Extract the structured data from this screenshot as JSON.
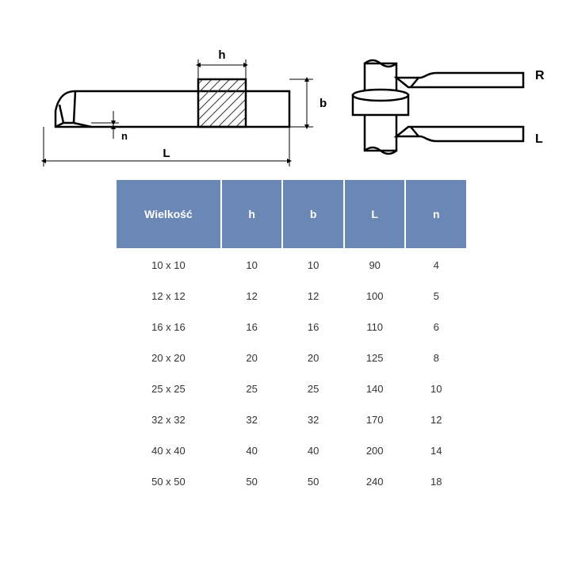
{
  "diagram": {
    "labels": {
      "h": "h",
      "b": "b",
      "L": "L",
      "n": "n",
      "R": "R",
      "Lside": "L"
    },
    "colors": {
      "stroke": "#000000",
      "hatch": "#333333",
      "bg": "#ffffff"
    }
  },
  "table": {
    "header_bg": "#6a87b5",
    "header_fg": "#ffffff",
    "cell_fg": "#333333",
    "columns": [
      "Wielkość",
      "h",
      "b",
      "L",
      "n"
    ],
    "col_widths": [
      "wide",
      "narrow",
      "narrow",
      "narrow",
      "narrow"
    ],
    "rows": [
      [
        "10 x 10",
        "10",
        "10",
        "90",
        "4"
      ],
      [
        "12 x 12",
        "12",
        "12",
        "100",
        "5"
      ],
      [
        "16 x 16",
        "16",
        "16",
        "110",
        "6"
      ],
      [
        "20 x 20",
        "20",
        "20",
        "125",
        "8"
      ],
      [
        "25 x 25",
        "25",
        "25",
        "140",
        "10"
      ],
      [
        "32 x 32",
        "32",
        "32",
        "170",
        "12"
      ],
      [
        "40 x 40",
        "40",
        "40",
        "200",
        "14"
      ],
      [
        "50 x 50",
        "50",
        "50",
        "240",
        "18"
      ]
    ]
  }
}
